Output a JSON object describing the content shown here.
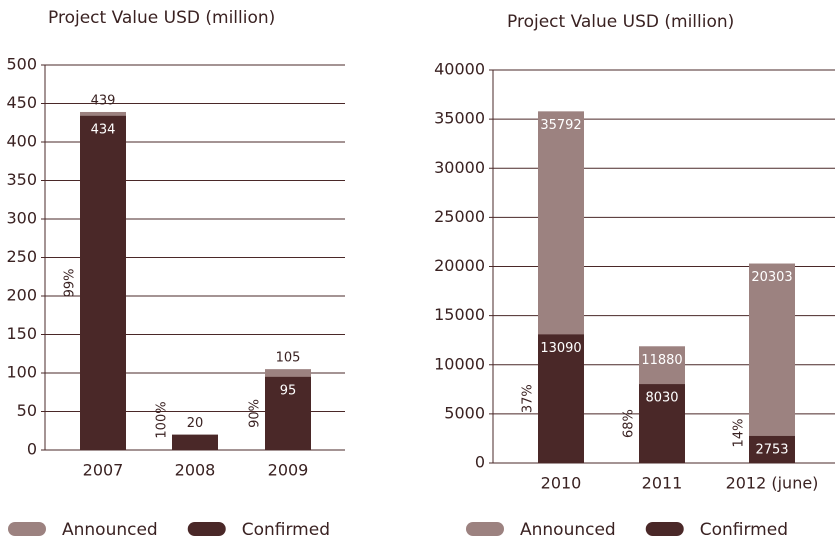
{
  "chart_data": [
    {
      "type": "bar",
      "title": "Project Value USD (million)",
      "categories": [
        "2007",
        "2008",
        "2009"
      ],
      "series": [
        {
          "name": "Announced",
          "color": "#9c8280",
          "values": [
            439,
            null,
            105
          ]
        },
        {
          "name": "Confirmed",
          "color": "#4a2828",
          "values": [
            434,
            20,
            95
          ]
        }
      ],
      "percent_labels": [
        "99%",
        "100%",
        "90%"
      ],
      "ylim": [
        0,
        500
      ],
      "yticks": [
        0,
        50,
        100,
        150,
        200,
        250,
        300,
        350,
        400,
        450,
        500
      ],
      "grid": true
    },
    {
      "type": "bar",
      "title": "Project Value USD (million)",
      "categories": [
        "2010",
        "2011",
        "2012 (june)"
      ],
      "series": [
        {
          "name": "Announced",
          "color": "#9c8280",
          "values": [
            35792,
            11880,
            20303
          ]
        },
        {
          "name": "Confirmed",
          "color": "#4a2828",
          "values": [
            13090,
            8030,
            2753
          ]
        }
      ],
      "percent_labels": [
        "37%",
        "68%",
        "14%"
      ],
      "ylim": [
        0,
        40000
      ],
      "yticks": [
        0,
        5000,
        10000,
        15000,
        20000,
        25000,
        30000,
        35000,
        40000
      ],
      "grid": true
    }
  ]
}
